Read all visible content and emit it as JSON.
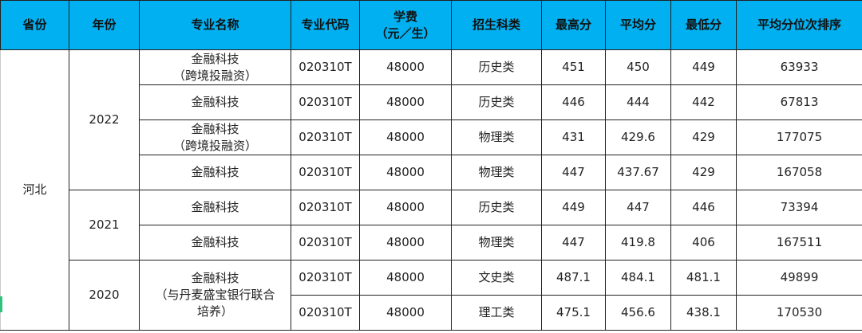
{
  "header_color": "#00b0f0",
  "headers": [
    "省份",
    "年份",
    "专业名称",
    "专业代码",
    "学费\n（元／生）",
    "招生科类",
    "最高分",
    "平均分",
    "最低分",
    "平均分位次排序"
  ],
  "header_fee_line1": "学费",
  "header_fee_line2": "（元／生）",
  "province": "河北",
  "years": [
    "2022",
    "2021",
    "2020"
  ],
  "rows": [
    {
      "name1": "金融科技",
      "name2": "（跨境投融资）",
      "code": "020310T",
      "fee": "48000",
      "type": "历史类",
      "max": "451",
      "avg": "450",
      "min": "449",
      "rank": "63933"
    },
    {
      "name1": "金融科技",
      "name2": "",
      "code": "020310T",
      "fee": "48000",
      "type": "历史类",
      "max": "446",
      "avg": "444",
      "min": "442",
      "rank": "67813"
    },
    {
      "name1": "金融科技",
      "name2": "（跨境投融资）",
      "code": "020310T",
      "fee": "48000",
      "type": "物理类",
      "max": "431",
      "avg": "429.6",
      "min": "429",
      "rank": "177075"
    },
    {
      "name1": "金融科技",
      "name2": "",
      "code": "020310T",
      "fee": "48000",
      "type": "物理类",
      "max": "447",
      "avg": "437.67",
      "min": "429",
      "rank": "167058"
    },
    {
      "name1": "金融科技",
      "name2": "",
      "code": "020310T",
      "fee": "48000",
      "type": "历史类",
      "max": "449",
      "avg": "447",
      "min": "446",
      "rank": "73394"
    },
    {
      "name1": "金融科技",
      "name2": "",
      "code": "020310T",
      "fee": "48000",
      "type": "物理类",
      "max": "447",
      "avg": "419.8",
      "min": "406",
      "rank": "167511"
    },
    {
      "code": "020310T",
      "fee": "48000",
      "type": "文史类",
      "max": "487.1",
      "avg": "484.1",
      "min": "481.1",
      "rank": "49899"
    },
    {
      "code": "020310T",
      "fee": "48000",
      "type": "理工类",
      "max": "475.1",
      "avg": "456.6",
      "min": "438.1",
      "rank": "170530"
    }
  ],
  "merged_2020_name1": "金融科技",
  "merged_2020_name2": "（与丹麦盛宝银行联合",
  "merged_2020_name3": "培养）"
}
